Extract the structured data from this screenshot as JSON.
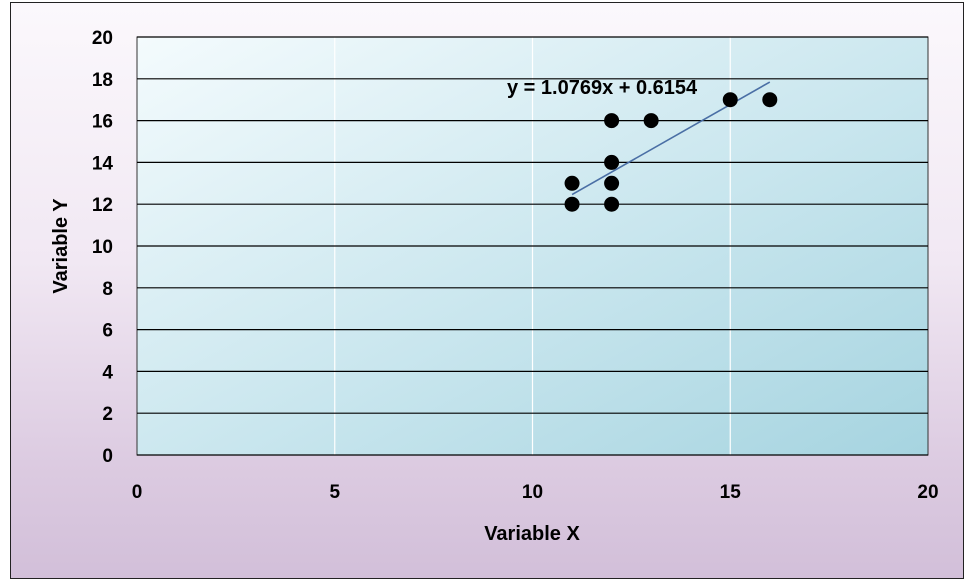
{
  "chart_data": {
    "type": "scatter",
    "title": "",
    "xlabel": "Variable X",
    "ylabel": "Variable Y",
    "xlim": [
      0,
      20
    ],
    "ylim": [
      0,
      20
    ],
    "xticks": [
      0,
      5,
      10,
      15,
      20
    ],
    "yticks": [
      0,
      2,
      4,
      6,
      8,
      10,
      12,
      14,
      16,
      18,
      20
    ],
    "grid": "horizontal and vertical",
    "legend": "none",
    "series": [
      {
        "points": [
          {
            "x": 11,
            "y": 12
          },
          {
            "x": 11,
            "y": 13
          },
          {
            "x": 12,
            "y": 12
          },
          {
            "x": 12,
            "y": 13
          },
          {
            "x": 12,
            "y": 14
          },
          {
            "x": 12,
            "y": 16
          },
          {
            "x": 13,
            "y": 16
          },
          {
            "x": 15,
            "y": 17
          },
          {
            "x": 16,
            "y": 17
          }
        ],
        "marker_color": "#000000"
      }
    ],
    "trendline": {
      "slope": 1.0769,
      "intercept": 0.6154,
      "x_range": [
        11,
        16
      ],
      "color": "#4a6fa5",
      "equation_label": "y = 1.0769x + 0.6154"
    },
    "colors": {
      "plot_background_start": "#eef8fb",
      "plot_background_end": "#a9d6e2",
      "gridline": "#000000",
      "vertical_gridline": "#ffffff"
    }
  }
}
